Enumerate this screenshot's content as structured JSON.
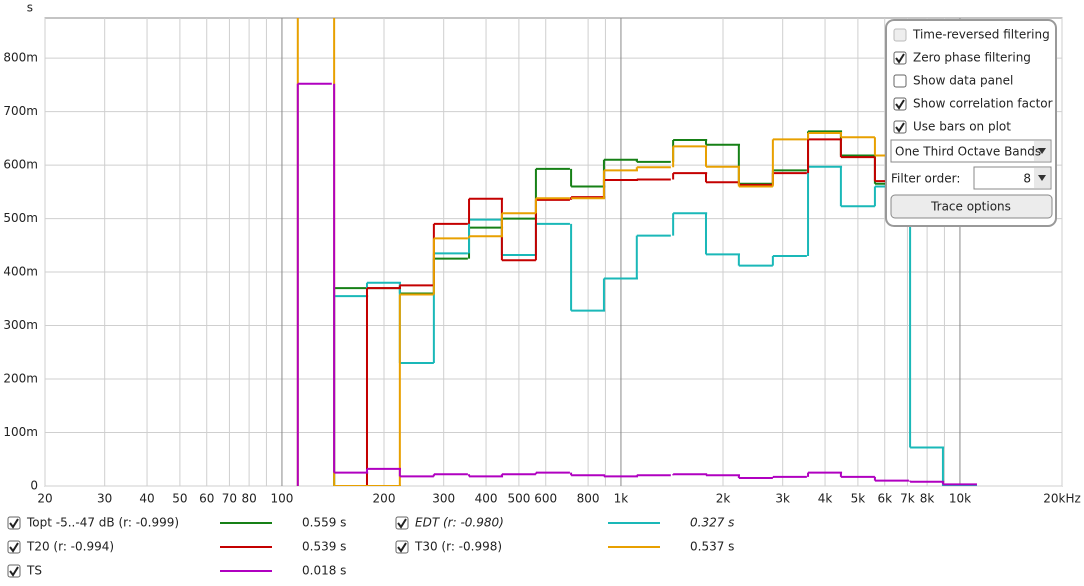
{
  "chart_data": {
    "type": "step",
    "y_unit": "s",
    "xlim": [
      20,
      20000
    ],
    "ylim": [
      0,
      0.875
    ],
    "log_x": true,
    "grid": true,
    "xticks": [
      20,
      30,
      40,
      50,
      60,
      70,
      80,
      100,
      200,
      300,
      400,
      500,
      600,
      800,
      {
        "value": 1000,
        "label": "1k"
      },
      {
        "value": 2000,
        "label": "2k"
      },
      {
        "value": 3000,
        "label": "3k"
      },
      {
        "value": 4000,
        "label": "4k"
      },
      {
        "value": 5000,
        "label": "5k"
      },
      {
        "value": 6000,
        "label": "6k"
      },
      {
        "value": 7000,
        "label": "7k"
      },
      {
        "value": 8000,
        "label": "8k"
      },
      {
        "value": 10000,
        "label": "10k"
      },
      {
        "value": 20000,
        "label": "20kHz"
      }
    ],
    "x_minor_ticks": [
      90,
      900,
      9000
    ],
    "yticks": [
      0,
      {
        "value": 0.1,
        "label": "100m"
      },
      {
        "value": 0.2,
        "label": "200m"
      },
      {
        "value": 0.3,
        "label": "300m"
      },
      {
        "value": 0.4,
        "label": "400m"
      },
      {
        "value": 0.5,
        "label": "500m"
      },
      {
        "value": 0.6,
        "label": "600m"
      },
      {
        "value": 0.7,
        "label": "700m"
      },
      {
        "value": 0.8,
        "label": "800m"
      }
    ],
    "x": [
      125,
      160,
      200,
      250,
      315,
      400,
      500,
      630,
      800,
      1000,
      1250,
      1600,
      2000,
      2500,
      3150,
      4000,
      5000,
      6300,
      8000,
      10000
    ],
    "series": [
      {
        "name": "Topt -5..-47 dB (r: -0.999)",
        "summary": "0.559 s",
        "checked": true,
        "color": "#168016",
        "values": [
          null,
          0.37,
          0.37,
          0.36,
          0.425,
          0.483,
          0.5,
          0.593,
          0.56,
          0.61,
          0.606,
          0.647,
          0.638,
          0.565,
          0.59,
          0.663,
          0.618,
          0.565,
          null,
          null
        ]
      },
      {
        "name": "EDT (r: -0.980)",
        "summary": "0.327 s",
        "checked": true,
        "color": "#1ab8b8",
        "italic": true,
        "values": [
          null,
          0.355,
          0.38,
          0.23,
          0.435,
          0.498,
          0.432,
          0.49,
          0.328,
          0.388,
          0.468,
          0.51,
          0.433,
          0.412,
          0.43,
          0.597,
          0.523,
          0.56,
          0.072,
          0
        ]
      },
      {
        "name": "T20 (r: -0.994)",
        "summary": "0.539 s",
        "checked": true,
        "color": "#c40000",
        "values": [
          null,
          0,
          0.37,
          0.375,
          0.49,
          0.537,
          0.422,
          0.535,
          0.54,
          0.572,
          0.573,
          0.585,
          0.568,
          0.563,
          0.585,
          0.648,
          0.615,
          0.57,
          null,
          null
        ]
      },
      {
        "name": "T30 (r: -0.998)",
        "summary": "0.537 s",
        "checked": true,
        "color": "#e8a000",
        "values": [
          0.95,
          0,
          0,
          0.358,
          0.463,
          0.467,
          0.51,
          0.538,
          0.538,
          0.59,
          0.596,
          0.635,
          0.597,
          0.56,
          0.648,
          0.66,
          0.652,
          0.618,
          null,
          null
        ]
      },
      {
        "name": "TS",
        "summary": "0.018 s",
        "checked": true,
        "color": "#b000c0",
        "values": [
          0.752,
          0.025,
          0.032,
          0.018,
          0.022,
          0.018,
          0.022,
          0.025,
          0.02,
          0.018,
          0.02,
          0.022,
          0.02,
          0.015,
          0.017,
          0.025,
          0.017,
          0.01,
          0.008,
          0.003
        ]
      }
    ]
  },
  "panel": {
    "options": [
      {
        "label": "Time-reversed filtering",
        "checked": false,
        "enabled": false
      },
      {
        "label": "Zero phase filtering",
        "checked": true,
        "enabled": true
      },
      {
        "label": "Show data panel",
        "checked": false,
        "enabled": true
      },
      {
        "label": "Show correlation factor",
        "checked": true,
        "enabled": true
      },
      {
        "label": "Use bars on plot",
        "checked": true,
        "enabled": true
      }
    ],
    "bands": "One Third Octave Bands",
    "filter_order_label": "Filter order:",
    "filter_order": "8",
    "button": "Trace options"
  }
}
